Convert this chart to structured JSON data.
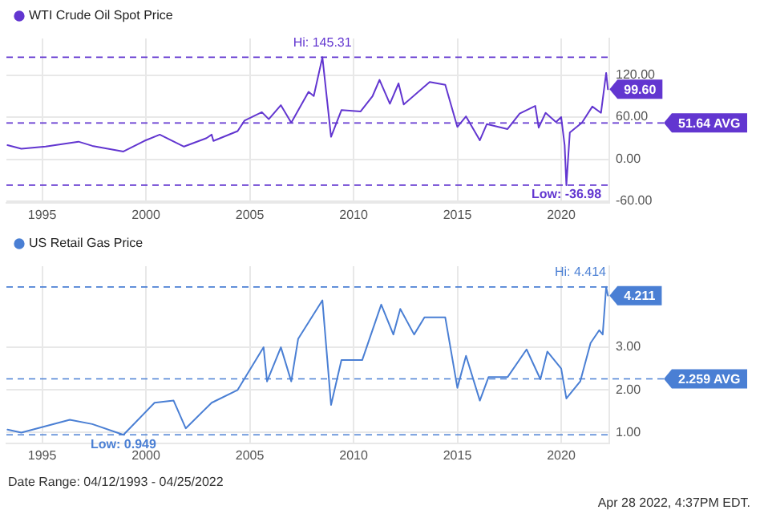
{
  "chart_data": [
    {
      "type": "line",
      "xlim": [
        "1993-04-12",
        "2022-04-25"
      ],
      "xticks": [
        "1995",
        "2000",
        "2005",
        "2010",
        "2015",
        "2020"
      ],
      "ylim": [
        -62,
        172
      ],
      "yticks": [
        {
          "value": -60,
          "label": "-60.00"
        },
        {
          "value": 0,
          "label": "0.00"
        },
        {
          "value": 60,
          "label": "60.00"
        },
        {
          "value": 120,
          "label": "120.00"
        }
      ],
      "grid": true,
      "legend": "top left",
      "marker": "none",
      "line_style": "solid",
      "series": [
        {
          "name": "WTI Crude Oil Spot Price",
          "color": "#6236d0",
          "x": [
            "1993-05",
            "1994-01",
            "1995-03",
            "1996-10",
            "1997-06",
            "1998-12",
            "1999-12",
            "2000-09",
            "2001-11",
            "2002-12",
            "2003-03",
            "2003-04",
            "2004-06",
            "2004-10",
            "2005-08",
            "2005-12",
            "2006-07",
            "2007-01",
            "2007-11",
            "2008-02",
            "2008-07",
            "2008-12",
            "2009-06",
            "2010-05",
            "2010-12",
            "2011-04",
            "2011-10",
            "2012-03",
            "2012-06",
            "2013-09",
            "2014-06",
            "2015-01",
            "2015-06",
            "2016-02",
            "2016-06",
            "2017-06",
            "2018-01",
            "2018-10",
            "2018-12",
            "2019-04",
            "2019-10",
            "2020-01",
            "2020-03",
            "2020-04",
            "2020-06",
            "2021-01",
            "2021-07",
            "2021-12",
            "2022-03",
            "2022-04"
          ],
          "values": [
            20,
            15,
            18,
            25,
            19,
            11,
            26,
            35,
            18,
            30,
            35,
            26,
            40,
            55,
            67,
            57,
            77,
            52,
            96,
            90,
            145.31,
            32,
            70,
            68,
            90,
            113,
            79,
            108,
            78,
            110,
            106,
            46,
            61,
            27,
            50,
            43,
            65,
            76,
            45,
            66,
            53,
            60,
            20,
            -36.98,
            38,
            52,
            75,
            66,
            123,
            99.6
          ]
        }
      ],
      "ref_lines": [
        {
          "axis": "y",
          "value": 145.31,
          "label": "Hi: 145.31",
          "color": "#6236d0",
          "line_style": "dashed"
        },
        {
          "axis": "y",
          "value": 51.64,
          "label": "51.64 AVG",
          "color": "#6236d0",
          "line_style": "dashed"
        },
        {
          "axis": "y",
          "value": -36.98,
          "label": "Low: -36.98",
          "color": "#6236d0",
          "line_style": "dashed"
        }
      ],
      "annotations": [
        {
          "text": "99.60",
          "x": "2022-04",
          "y": 99.6
        }
      ]
    },
    {
      "type": "line",
      "xlim": [
        "1993-04-12",
        "2022-04-25"
      ],
      "xticks": [
        "1995",
        "2000",
        "2005",
        "2010",
        "2015",
        "2020"
      ],
      "ylim": [
        0.75,
        4.9
      ],
      "yticks": [
        {
          "value": 1,
          "label": "1.00"
        },
        {
          "value": 2,
          "label": "2.00"
        },
        {
          "value": 3,
          "label": "3.00"
        }
      ],
      "grid": true,
      "legend": "top left",
      "marker": "none",
      "line_style": "solid",
      "series": [
        {
          "name": "US Retail Gas Price",
          "color": "#4a7fd4",
          "x": [
            "1993-05",
            "1994-01",
            "1996-05",
            "1997-06",
            "1998-12",
            "2000-06",
            "2001-05",
            "2001-12",
            "2003-03",
            "2004-06",
            "2005-09",
            "2005-11",
            "2006-07",
            "2007-01",
            "2007-05",
            "2008-07",
            "2008-12",
            "2009-06",
            "2010-06",
            "2011-05",
            "2011-12",
            "2012-04",
            "2012-12",
            "2013-06",
            "2014-06",
            "2015-01",
            "2015-06",
            "2016-02",
            "2016-07",
            "2017-06",
            "2018-05",
            "2019-01",
            "2019-05",
            "2020-01",
            "2020-04",
            "2020-12",
            "2021-06",
            "2021-11",
            "2022-01",
            "2022-03",
            "2022-04"
          ],
          "values": [
            1.07,
            1.0,
            1.3,
            1.2,
            0.949,
            1.7,
            1.75,
            1.1,
            1.7,
            2.0,
            3.0,
            2.2,
            3.0,
            2.2,
            3.2,
            4.1,
            1.65,
            2.7,
            2.7,
            4.0,
            3.3,
            3.9,
            3.3,
            3.7,
            3.7,
            2.05,
            2.8,
            1.75,
            2.3,
            2.3,
            2.95,
            2.25,
            2.9,
            2.5,
            1.8,
            2.2,
            3.1,
            3.4,
            3.3,
            4.414,
            4.211
          ]
        }
      ],
      "ref_lines": [
        {
          "axis": "y",
          "value": 4.414,
          "label": "Hi: 4.414",
          "color": "#4a7fd4",
          "line_style": "dashed"
        },
        {
          "axis": "y",
          "value": 2.259,
          "label": "2.259 AVG",
          "color": "#4a7fd4",
          "line_style": "dashed"
        },
        {
          "axis": "y",
          "value": 0.949,
          "label": "Low: 0.949",
          "color": "#4a7fd4",
          "line_style": "dashed"
        }
      ],
      "annotations": [
        {
          "text": "4.211",
          "x": "2022-04",
          "y": 4.211
        },
        "Date Range: 04/12/1993 - 04/25/2022",
        "Apr 28 2022, 4:37PM EDT."
      ]
    }
  ]
}
